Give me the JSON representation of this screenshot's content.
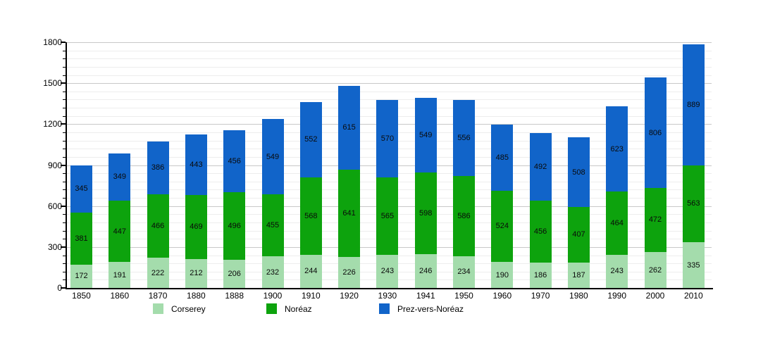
{
  "chart_data": {
    "type": "bar",
    "stacked": true,
    "title": "",
    "categories": [
      "1850",
      "1860",
      "1870",
      "1880",
      "1888",
      "1900",
      "1910",
      "1920",
      "1930",
      "1941",
      "1950",
      "1960",
      "1970",
      "1980",
      "1990",
      "2000",
      "2010"
    ],
    "series": [
      {
        "name": "Corserey",
        "color": "#A4DCAC",
        "values": [
          172,
          191,
          222,
          212,
          206,
          232,
          244,
          226,
          243,
          246,
          234,
          190,
          186,
          187,
          243,
          262,
          335
        ]
      },
      {
        "name": "Noréaz",
        "color": "#0DA30D",
        "values": [
          381,
          447,
          466,
          469,
          496,
          455,
          568,
          641,
          565,
          598,
          586,
          524,
          456,
          407,
          464,
          472,
          563
        ]
      },
      {
        "name": "Prez-vers-Noréaz",
        "color": "#1164C9",
        "values": [
          345,
          349,
          386,
          443,
          456,
          549,
          552,
          615,
          570,
          549,
          556,
          485,
          492,
          508,
          623,
          806,
          889
        ]
      }
    ],
    "xlabel": "",
    "ylabel": "",
    "ylim": [
      0,
      1800
    ],
    "y_major_ticks": [
      0,
      300,
      600,
      900,
      1200,
      1500,
      1800
    ],
    "y_minor_step": 60,
    "grid": true,
    "legend_position": "bottom",
    "value_labels": "inside-segments"
  }
}
